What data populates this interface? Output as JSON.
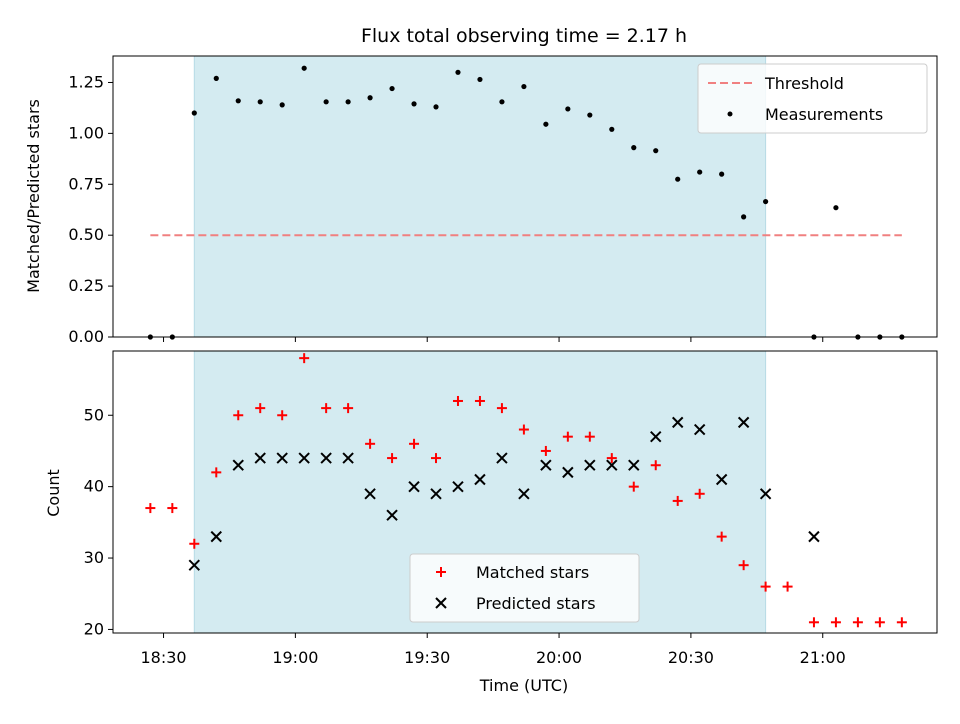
{
  "chart_data": [
    {
      "type": "scatter",
      "title": "Flux total observing time = 2.17 h",
      "ylabel": "Matched/Predicted stars",
      "xlabel": "",
      "x_units": "minutes after 18:00 UTC",
      "xlim": [
        18.5,
        206
      ],
      "ylim": [
        0,
        1.38
      ],
      "yticks": [
        0.0,
        0.25,
        0.5,
        0.75,
        1.0,
        1.25
      ],
      "ytick_labels": [
        "0.00",
        "0.25",
        "0.50",
        "0.75",
        "1.00",
        "1.25"
      ],
      "shaded_span": [
        37,
        167
      ],
      "threshold": {
        "name": "Threshold",
        "value": 0.5,
        "x_range": [
          27,
          198
        ],
        "color": "#f08080"
      },
      "legend": [
        "Threshold",
        "Measurements"
      ],
      "legend_position": "top-right",
      "series": [
        {
          "name": "Measurements",
          "color": "#000000",
          "x": [
            27,
            32,
            37,
            42,
            47,
            52,
            57,
            62,
            67,
            72,
            77,
            82,
            87,
            92,
            97,
            102,
            107,
            112,
            117,
            122,
            127,
            132,
            137,
            142,
            147,
            152,
            157,
            162,
            167,
            172,
            178,
            183,
            188,
            193,
            198
          ],
          "y": [
            0.0,
            0.0,
            1.1,
            1.27,
            1.16,
            1.155,
            1.14,
            1.32,
            1.155,
            1.155,
            1.175,
            1.22,
            1.145,
            1.13,
            1.3,
            1.265,
            1.155,
            1.23,
            1.045,
            1.12,
            1.09,
            1.02,
            0.93,
            0.915,
            0.775,
            0.81,
            0.8,
            0.59,
            0.665,
            null,
            0.0,
            0.635,
            0.0,
            0.0,
            0.0
          ]
        }
      ]
    },
    {
      "type": "scatter",
      "title": "",
      "ylabel": "Count",
      "xlabel": "Time (UTC)",
      "xlim": [
        18.5,
        206
      ],
      "ylim": [
        19.5,
        59
      ],
      "yticks": [
        20,
        30,
        40,
        50
      ],
      "xticks": [
        30,
        60,
        90,
        120,
        150,
        180
      ],
      "xtick_labels": [
        "18:30",
        "19:00",
        "19:30",
        "20:00",
        "20:30",
        "21:00"
      ],
      "shaded_span": [
        37,
        167
      ],
      "legend": [
        "Matched stars",
        "Predicted stars"
      ],
      "legend_position": "lower-center",
      "series": [
        {
          "name": "Matched stars",
          "marker": "plus",
          "color": "#ff0000",
          "x": [
            27,
            32,
            37,
            42,
            47,
            52,
            57,
            62,
            67,
            72,
            77,
            82,
            87,
            92,
            97,
            102,
            107,
            112,
            117,
            122,
            127,
            132,
            137,
            142,
            147,
            152,
            157,
            162,
            167,
            172,
            178,
            183,
            188,
            193,
            198
          ],
          "y": [
            37,
            37,
            32,
            42,
            50,
            51,
            50,
            58,
            51,
            51,
            46,
            44,
            46,
            44,
            52,
            52,
            51,
            48,
            45,
            47,
            47,
            44,
            40,
            43,
            38,
            39,
            33,
            29,
            26,
            26,
            21,
            21,
            21,
            21,
            21
          ]
        },
        {
          "name": "Predicted stars",
          "marker": "x",
          "color": "#000000",
          "x": [
            37,
            42,
            47,
            52,
            57,
            62,
            67,
            72,
            77,
            82,
            87,
            92,
            97,
            102,
            107,
            112,
            117,
            122,
            127,
            132,
            137,
            142,
            147,
            152,
            157,
            162,
            167,
            178
          ],
          "y": [
            29,
            33,
            43,
            44,
            44,
            44,
            44,
            44,
            39,
            36,
            40,
            39,
            40,
            41,
            44,
            39,
            43,
            42,
            43,
            43,
            43,
            47,
            49,
            48,
            41,
            49,
            39,
            33
          ]
        }
      ]
    }
  ],
  "colors": {
    "shade": "#d4ebf1",
    "shade_edge": "#b7dbe5",
    "threshold": "#f08080",
    "matched": "#ff0000",
    "predicted": "#000000",
    "measurements": "#000000"
  }
}
